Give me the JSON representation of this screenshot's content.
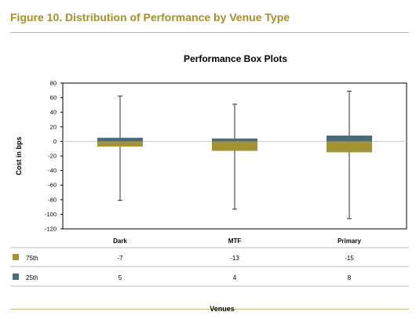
{
  "figure": {
    "title": "Figure 10. Distribution of Performance by Venue Type"
  },
  "colors": {
    "accent": "#a38f2d",
    "series_75th": "#a39335",
    "series_25th": "#4a6b7c"
  },
  "chart_data": {
    "type": "bar",
    "subtype": "box-plot (stacked quartile bars with whiskers)",
    "title": "Performance Box Plots",
    "ylabel": "Cost in bps",
    "xlabel": "Venues",
    "ylim": [
      -120,
      80
    ],
    "yticks": [
      80,
      60,
      40,
      20,
      0,
      -20,
      -40,
      -60,
      -80,
      -100,
      -120
    ],
    "categories": [
      "Dark",
      "MTF",
      "Primary"
    ],
    "series": [
      {
        "name": "75th",
        "values": [
          -7,
          -13,
          -15
        ]
      },
      {
        "name": "25th",
        "values": [
          5,
          4,
          8
        ]
      }
    ],
    "whiskers": {
      "max": [
        62,
        51,
        69
      ],
      "min": [
        -81,
        -93,
        -106
      ]
    },
    "grid": false,
    "legend": "data-table below plot"
  }
}
